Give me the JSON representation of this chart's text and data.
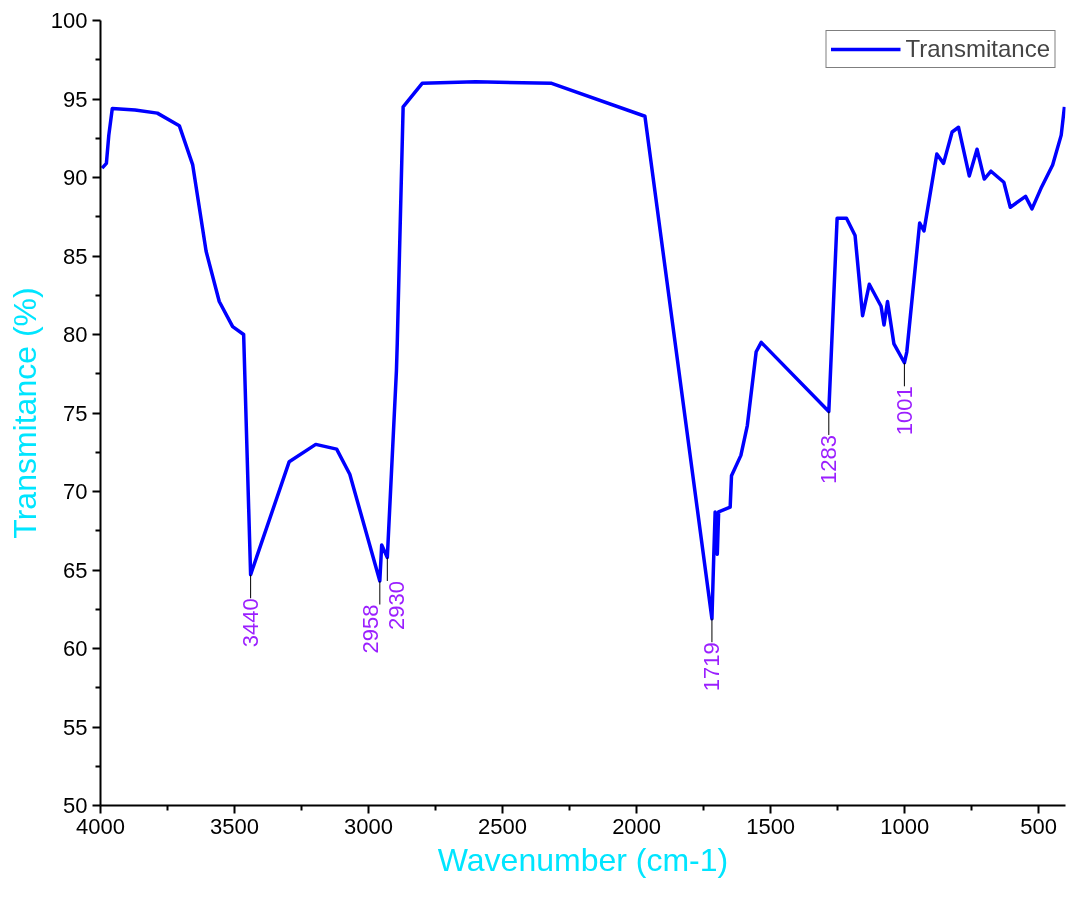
{
  "chart_data": {
    "type": "line",
    "xlabel": "Wavenumber (cm-1)",
    "ylabel": "Transmitance (%)",
    "xlim": [
      4000,
      400
    ],
    "xticks": [
      4000,
      3500,
      3000,
      2500,
      2000,
      1500,
      1000,
      500
    ],
    "ylim": [
      50,
      100
    ],
    "yticks": [
      50,
      55,
      60,
      65,
      70,
      75,
      80,
      85,
      90,
      95,
      100
    ],
    "grid": false,
    "legend": "top right",
    "marker": "none",
    "line_style": "solid",
    "x": [
      3994,
      3978,
      3969,
      3956,
      3871,
      3788,
      3706,
      3656,
      3606,
      3557,
      3507,
      3466,
      3440,
      3296,
      3197,
      3119,
      3070,
      2958,
      2951,
      2930,
      2896,
      2893,
      2871,
      2800,
      2600,
      2317,
      1969,
      1719,
      1712,
      1707,
      1699,
      1694,
      1651,
      1646,
      1611,
      1587,
      1554,
      1535,
      1283,
      1252,
      1217,
      1185,
      1157,
      1132,
      1088,
      1077,
      1064,
      1040,
      1001,
      992,
      944,
      928,
      880,
      855,
      823,
      799,
      759,
      730,
      703,
      678,
      630,
      606,
      549,
      525,
      489,
      448,
      416,
      404
    ],
    "series": [
      {
        "name": "Transmitance",
        "color": "#0000ff",
        "values": [
          90.6,
          90.9,
          92.7,
          94.4,
          94.3,
          94.1,
          93.3,
          90.8,
          85.3,
          82.1,
          80.5,
          80.0,
          64.7,
          71.9,
          73.0,
          72.7,
          71.1,
          64.3,
          66.6,
          65.8,
          77.7,
          79.4,
          94.5,
          96.0,
          96.1,
          96.0,
          93.9,
          61.9,
          66.0,
          68.7,
          66.0,
          68.7,
          69.0,
          71.0,
          72.3,
          74.2,
          78.9,
          79.5,
          75.1,
          87.4,
          87.4,
          86.3,
          81.2,
          83.2,
          81.8,
          80.6,
          82.1,
          79.4,
          78.2,
          78.9,
          87.1,
          86.6,
          91.5,
          90.9,
          92.9,
          93.2,
          90.1,
          91.8,
          89.9,
          90.4,
          89.7,
          88.1,
          88.8,
          88.0,
          89.4,
          90.8,
          92.7,
          94.5
        ]
      }
    ],
    "annotations": [
      {
        "text": "3440",
        "x": 3440,
        "y": 64.7
      },
      {
        "text": "2958",
        "x": 2958,
        "y": 64.3
      },
      {
        "text": "2930",
        "x": 2930,
        "y": 65.8
      },
      {
        "text": "1719",
        "x": 1719,
        "y": 61.9
      },
      {
        "text": "1283",
        "x": 1283,
        "y": 75.1
      },
      {
        "text": "1001",
        "x": 1001,
        "y": 78.2
      }
    ]
  }
}
